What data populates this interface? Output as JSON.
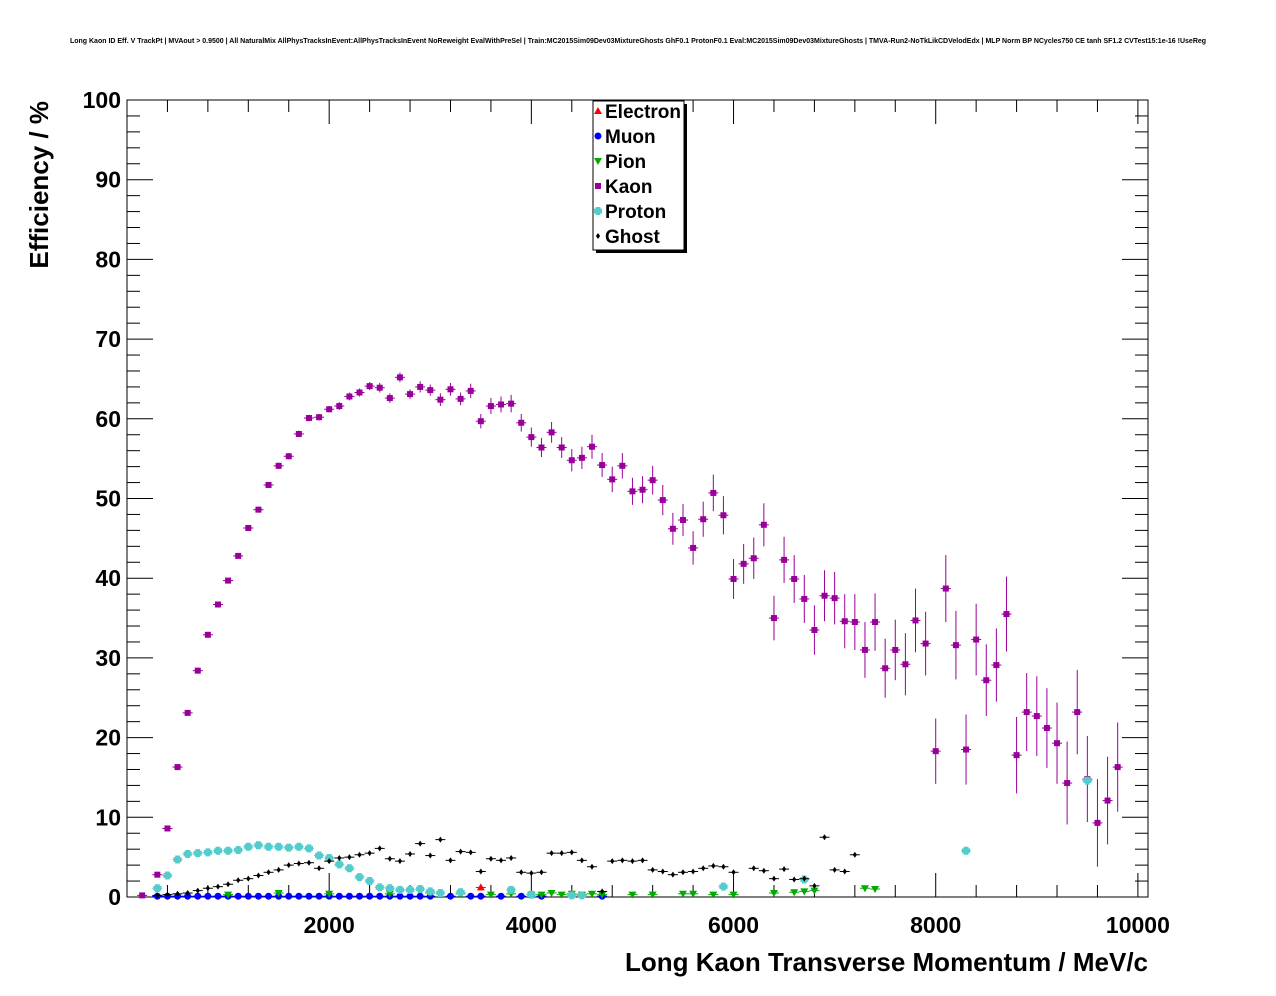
{
  "chart_data": {
    "type": "scatter",
    "title": "Long Kaon ID Eff. V TrackPt | MVAout > 0.9500 | All NaturalMix AllPhysTracksInEvent:AllPhysTracksInEvent NoReweight EvalWithPreSel | Train:MC2015Sim09Dev03MixtureGhosts GhF0.1 ProtonF0.1 Eval:MC2015Sim09Dev03MixtureGhosts | TMVA-Run2-NoTkLikCDVelodEdx | MLP Norm BP NCycles750 CE tanh SF1.2 CVTest15:1e-16 !UseReg",
    "xlabel": "Long Kaon Transverse Momentum / MeV/c",
    "ylabel": "Efficiency / %",
    "xlim": [
      0,
      10100
    ],
    "ylim": [
      0,
      100
    ],
    "x_ticks": [
      2000,
      4000,
      6000,
      8000,
      10000
    ],
    "y_ticks": [
      0,
      10,
      20,
      30,
      40,
      50,
      60,
      70,
      80,
      90,
      100
    ],
    "grid": false,
    "legend_position": "top-center",
    "series": [
      {
        "name": "Electron",
        "color": "#ff0000",
        "marker": "triangle-up",
        "points": [
          [
            3500,
            1.2
          ]
        ]
      },
      {
        "name": "Muon",
        "color": "#0000ff",
        "marker": "circle",
        "points": [
          [
            300,
            0.1
          ],
          [
            400,
            0.1
          ],
          [
            500,
            0.1
          ],
          [
            600,
            0.1
          ],
          [
            700,
            0.1
          ],
          [
            800,
            0.1
          ],
          [
            900,
            0.1
          ],
          [
            1000,
            0.1
          ],
          [
            1100,
            0.1
          ],
          [
            1200,
            0.1
          ],
          [
            1300,
            0.1
          ],
          [
            1400,
            0.1
          ],
          [
            1500,
            0.1
          ],
          [
            1600,
            0.1
          ],
          [
            1700,
            0.1
          ],
          [
            1800,
            0.1
          ],
          [
            1900,
            0.1
          ],
          [
            2000,
            0.1
          ],
          [
            2100,
            0.1
          ],
          [
            2200,
            0.1
          ],
          [
            2300,
            0.1
          ],
          [
            2400,
            0.1
          ],
          [
            2500,
            0.1
          ],
          [
            2600,
            0.1
          ],
          [
            2700,
            0.1
          ],
          [
            2800,
            0.1
          ],
          [
            2900,
            0.1
          ],
          [
            3000,
            0.1
          ],
          [
            3200,
            0.1
          ],
          [
            3400,
            0.1
          ],
          [
            3500,
            0.1
          ],
          [
            3700,
            0.1
          ],
          [
            3900,
            0.1
          ],
          [
            4100,
            0.1
          ],
          [
            4700,
            0.1
          ]
        ]
      },
      {
        "name": "Pion",
        "color": "#00aa00",
        "marker": "triangle-down",
        "points": [
          [
            1000,
            0.3
          ],
          [
            1500,
            0.5
          ],
          [
            2000,
            0.4
          ],
          [
            2600,
            0.4
          ],
          [
            3000,
            0.5
          ],
          [
            3300,
            0.4
          ],
          [
            3600,
            0.3
          ],
          [
            3800,
            0.4
          ],
          [
            4000,
            0.3
          ],
          [
            4100,
            0.3
          ],
          [
            4200,
            0.5
          ],
          [
            4300,
            0.3
          ],
          [
            4400,
            0.4
          ],
          [
            4500,
            0.3
          ],
          [
            4600,
            0.4
          ],
          [
            4700,
            0.3
          ],
          [
            5000,
            0.3
          ],
          [
            5200,
            0.3
          ],
          [
            5500,
            0.4
          ],
          [
            5600,
            0.4
          ],
          [
            5800,
            0.3
          ],
          [
            6000,
            0.3
          ],
          [
            6400,
            0.5
          ],
          [
            6600,
            0.6
          ],
          [
            6700,
            0.7
          ],
          [
            6800,
            0.8
          ],
          [
            7300,
            1.1
          ],
          [
            7400,
            1.0
          ]
        ]
      },
      {
        "name": "Kaon",
        "color": "#990099",
        "marker": "square",
        "points": [
          [
            150,
            0.2
          ],
          [
            300,
            2.8
          ],
          [
            400,
            8.6
          ],
          [
            500,
            16.3
          ],
          [
            600,
            23.1
          ],
          [
            700,
            28.4
          ],
          [
            800,
            32.9
          ],
          [
            900,
            36.7
          ],
          [
            1000,
            39.7
          ],
          [
            1100,
            42.8
          ],
          [
            1200,
            46.3
          ],
          [
            1300,
            48.6
          ],
          [
            1400,
            51.7
          ],
          [
            1500,
            54.1
          ],
          [
            1600,
            55.3
          ],
          [
            1700,
            58.1
          ],
          [
            1800,
            60.1
          ],
          [
            1900,
            60.2
          ],
          [
            2000,
            61.2
          ],
          [
            2100,
            61.6
          ],
          [
            2200,
            62.8
          ],
          [
            2300,
            63.3
          ],
          [
            2400,
            64.1
          ],
          [
            2500,
            63.9
          ],
          [
            2600,
            62.6
          ],
          [
            2700,
            65.2
          ],
          [
            2800,
            63.1
          ],
          [
            2900,
            64.0
          ],
          [
            3000,
            63.6
          ],
          [
            3100,
            62.4
          ],
          [
            3200,
            63.7
          ],
          [
            3300,
            62.5
          ],
          [
            3400,
            63.5
          ],
          [
            3500,
            59.7
          ],
          [
            3600,
            61.6
          ],
          [
            3700,
            61.8
          ],
          [
            3800,
            61.9
          ],
          [
            3900,
            59.5
          ],
          [
            4000,
            57.7
          ],
          [
            4100,
            56.4
          ],
          [
            4200,
            58.3
          ],
          [
            4300,
            56.4
          ],
          [
            4400,
            54.8
          ],
          [
            4500,
            55.1
          ],
          [
            4600,
            56.5
          ],
          [
            4700,
            54.2
          ],
          [
            4800,
            52.4
          ],
          [
            4900,
            54.1
          ],
          [
            5000,
            50.9
          ],
          [
            5100,
            51.1
          ],
          [
            5200,
            52.3
          ],
          [
            5300,
            49.8
          ],
          [
            5400,
            46.2
          ],
          [
            5500,
            47.3
          ],
          [
            5600,
            43.8
          ],
          [
            5700,
            47.4
          ],
          [
            5800,
            50.7
          ],
          [
            5900,
            47.9
          ],
          [
            6000,
            39.9
          ],
          [
            6100,
            41.8
          ],
          [
            6200,
            42.5
          ],
          [
            6300,
            46.7
          ],
          [
            6400,
            35.0
          ],
          [
            6500,
            42.3
          ],
          [
            6600,
            39.9
          ],
          [
            6700,
            37.4
          ],
          [
            6800,
            33.5
          ],
          [
            6900,
            37.8
          ],
          [
            7000,
            37.5
          ],
          [
            7100,
            34.6
          ],
          [
            7200,
            34.5
          ],
          [
            7300,
            31.0
          ],
          [
            7400,
            34.5
          ],
          [
            7500,
            28.7
          ],
          [
            7600,
            31.0
          ],
          [
            7700,
            29.2
          ],
          [
            7800,
            34.7
          ],
          [
            7900,
            31.8
          ],
          [
            8000,
            18.3
          ],
          [
            8100,
            38.7
          ],
          [
            8200,
            31.6
          ],
          [
            8300,
            18.5
          ],
          [
            8400,
            32.3
          ],
          [
            8500,
            27.2
          ],
          [
            8600,
            29.1
          ],
          [
            8700,
            35.5
          ],
          [
            8800,
            17.8
          ],
          [
            8900,
            23.2
          ],
          [
            9000,
            22.7
          ],
          [
            9100,
            21.2
          ],
          [
            9200,
            19.3
          ],
          [
            9300,
            14.3
          ],
          [
            9400,
            23.2
          ],
          [
            9500,
            14.8
          ],
          [
            9600,
            9.3
          ],
          [
            9700,
            12.1
          ],
          [
            9800,
            16.3
          ]
        ],
        "errors": [
          0.1,
          0.2,
          0.2,
          0.3,
          0.3,
          0.3,
          0.3,
          0.3,
          0.3,
          0.3,
          0.3,
          0.3,
          0.3,
          0.4,
          0.4,
          0.4,
          0.4,
          0.4,
          0.4,
          0.5,
          0.5,
          0.5,
          0.5,
          0.6,
          0.6,
          0.6,
          0.6,
          0.7,
          0.7,
          0.8,
          0.8,
          0.8,
          0.9,
          0.9,
          1.0,
          1.0,
          1.1,
          1.1,
          1.2,
          1.2,
          1.3,
          1.3,
          1.4,
          1.4,
          1.5,
          1.5,
          1.6,
          1.6,
          1.7,
          1.7,
          1.8,
          1.9,
          2.0,
          2.0,
          2.1,
          2.2,
          2.3,
          2.4,
          2.5,
          2.5,
          2.6,
          2.7,
          2.8,
          2.9,
          3.0,
          3.0,
          3.1,
          3.2,
          3.3,
          3.4,
          3.5,
          3.5,
          3.6,
          3.7,
          3.8,
          3.9,
          4.0,
          4.0,
          4.1,
          4.2,
          4.3,
          4.4,
          4.5,
          4.5,
          4.6,
          4.7,
          4.8,
          4.9,
          5.0,
          5.0,
          5.1,
          5.2,
          5.3,
          5.4,
          5.5,
          5.5,
          5.6
        ]
      },
      {
        "name": "Proton",
        "color": "#55cccc",
        "marker": "cross",
        "points": [
          [
            300,
            1.1
          ],
          [
            400,
            2.7
          ],
          [
            500,
            4.7
          ],
          [
            600,
            5.4
          ],
          [
            700,
            5.5
          ],
          [
            800,
            5.6
          ],
          [
            900,
            5.8
          ],
          [
            1000,
            5.8
          ],
          [
            1100,
            5.9
          ],
          [
            1200,
            6.3
          ],
          [
            1300,
            6.5
          ],
          [
            1400,
            6.3
          ],
          [
            1500,
            6.3
          ],
          [
            1600,
            6.2
          ],
          [
            1700,
            6.3
          ],
          [
            1800,
            6.1
          ],
          [
            1900,
            5.2
          ],
          [
            2000,
            4.9
          ],
          [
            2100,
            4.1
          ],
          [
            2200,
            3.6
          ],
          [
            2300,
            2.5
          ],
          [
            2400,
            2.0
          ],
          [
            2500,
            1.2
          ],
          [
            2600,
            1.1
          ],
          [
            2700,
            0.9
          ],
          [
            2800,
            0.9
          ],
          [
            2900,
            1.0
          ],
          [
            3000,
            0.7
          ],
          [
            3100,
            0.5
          ],
          [
            3300,
            0.6
          ],
          [
            3800,
            0.9
          ],
          [
            4000,
            0.3
          ],
          [
            4400,
            0.2
          ],
          [
            4500,
            0.2
          ],
          [
            5900,
            1.3
          ],
          [
            6700,
            2.2
          ],
          [
            8300,
            5.8
          ],
          [
            9500,
            14.6
          ]
        ]
      },
      {
        "name": "Ghost",
        "color": "#000000",
        "marker": "diamond",
        "points": [
          [
            300,
            0.2
          ],
          [
            400,
            0.3
          ],
          [
            500,
            0.4
          ],
          [
            600,
            0.5
          ],
          [
            700,
            0.8
          ],
          [
            800,
            1.1
          ],
          [
            900,
            1.3
          ],
          [
            1000,
            1.6
          ],
          [
            1100,
            2.1
          ],
          [
            1200,
            2.3
          ],
          [
            1300,
            2.7
          ],
          [
            1400,
            3.1
          ],
          [
            1500,
            3.4
          ],
          [
            1600,
            4.0
          ],
          [
            1700,
            4.2
          ],
          [
            1800,
            4.3
          ],
          [
            1900,
            3.6
          ],
          [
            2000,
            4.5
          ],
          [
            2100,
            4.9
          ],
          [
            2200,
            5.0
          ],
          [
            2300,
            5.3
          ],
          [
            2400,
            5.5
          ],
          [
            2500,
            6.1
          ],
          [
            2600,
            4.8
          ],
          [
            2700,
            4.5
          ],
          [
            2800,
            5.4
          ],
          [
            2900,
            6.7
          ],
          [
            3000,
            5.2
          ],
          [
            3100,
            7.2
          ],
          [
            3200,
            4.6
          ],
          [
            3300,
            5.7
          ],
          [
            3400,
            5.6
          ],
          [
            3500,
            3.2
          ],
          [
            3600,
            4.8
          ],
          [
            3700,
            4.6
          ],
          [
            3800,
            4.9
          ],
          [
            3900,
            3.1
          ],
          [
            4000,
            3.0
          ],
          [
            4100,
            3.1
          ],
          [
            4200,
            5.5
          ],
          [
            4300,
            5.5
          ],
          [
            4400,
            5.6
          ],
          [
            4500,
            4.6
          ],
          [
            4600,
            3.8
          ],
          [
            4700,
            0.7
          ],
          [
            4800,
            4.5
          ],
          [
            4900,
            4.6
          ],
          [
            5000,
            4.5
          ],
          [
            5100,
            4.6
          ],
          [
            5200,
            3.4
          ],
          [
            5300,
            3.2
          ],
          [
            5400,
            2.8
          ],
          [
            5500,
            3.1
          ],
          [
            5600,
            3.2
          ],
          [
            5700,
            3.6
          ],
          [
            5800,
            3.9
          ],
          [
            5900,
            3.8
          ],
          [
            6000,
            3.1
          ],
          [
            6200,
            3.6
          ],
          [
            6300,
            3.3
          ],
          [
            6400,
            2.3
          ],
          [
            6500,
            3.5
          ],
          [
            6600,
            2.2
          ],
          [
            6700,
            2.3
          ],
          [
            6800,
            1.4
          ],
          [
            6900,
            7.5
          ],
          [
            7000,
            3.4
          ],
          [
            7100,
            3.2
          ],
          [
            7200,
            5.3
          ]
        ]
      }
    ]
  }
}
